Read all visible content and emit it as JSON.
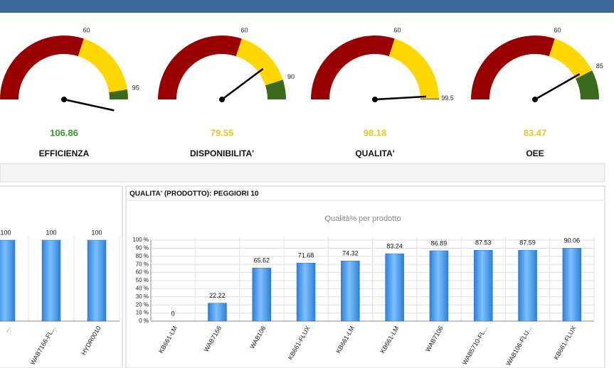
{
  "chart_data": [
    {
      "type": "gauge",
      "title": "EFFICIENZA",
      "value": 106.86,
      "value_color": "#3a9a2e",
      "ylim": [
        0,
        100
      ],
      "yticks": [
        60,
        95
      ],
      "band_colors": [
        "#990000",
        "#ffd700",
        "#3a6b1c"
      ]
    },
    {
      "type": "gauge",
      "title": "DISPONIBILITA'",
      "value": 79.55,
      "value_color": "#e8c820",
      "ylim": [
        0,
        100
      ],
      "yticks": [
        60,
        90
      ],
      "band_colors": [
        "#990000",
        "#ffd700",
        "#3a6b1c"
      ]
    },
    {
      "type": "gauge",
      "title": "QUALITA'",
      "value": 98.18,
      "value_color": "#e8c820",
      "ylim": [
        0,
        100
      ],
      "yticks": [
        60,
        99.5
      ],
      "band_colors": [
        "#990000",
        "#ffd700",
        "#3a6b1c"
      ]
    },
    {
      "type": "gauge",
      "title": "OEE",
      "value": 83.47,
      "value_color": "#e8c820",
      "ylim": [
        0,
        100
      ],
      "yticks": [
        60,
        85
      ],
      "band_colors": [
        "#990000",
        "#ffd700",
        "#3a6b1c"
      ]
    },
    {
      "type": "bar",
      "categories": [
        "...",
        "WAB7166-FL...",
        "HYDR0010"
      ],
      "values": [
        100,
        100,
        100
      ],
      "color": "#4a9ff0",
      "ylim": [
        0,
        100
      ]
    },
    {
      "type": "bar",
      "panel_title": "QUALITA' (PRODOTTO): PEGGIORI 10",
      "title": "Qualità% per prodotto",
      "categories": [
        "KB661-LM",
        "WAB7166",
        "WAB106",
        "KB661-FLUX",
        "KB661-LM",
        "KB661-LM",
        "WAB7106",
        "WAB5710-FL...",
        "WAB106-FLU...",
        "KB661-FLUX"
      ],
      "values": [
        0,
        22.22,
        65.62,
        71.68,
        74.32,
        83.24,
        86.89,
        87.53,
        87.59,
        90.06
      ],
      "color": "#4a9ff0",
      "ylim": [
        0,
        100
      ],
      "yticks": [
        {
          "value": 0,
          "label": "0 %"
        },
        {
          "value": 10,
          "label": "10 %"
        },
        {
          "value": 20,
          "label": "20 %"
        },
        {
          "value": 30,
          "label": "30 %"
        },
        {
          "value": 40,
          "label": "40 %"
        },
        {
          "value": 50,
          "label": "50 %"
        },
        {
          "value": 60,
          "label": "60 %"
        },
        {
          "value": 70,
          "label": "70 %"
        },
        {
          "value": 80,
          "label": "80 %"
        },
        {
          "value": 90,
          "label": "90 %"
        },
        {
          "value": 100,
          "label": "100 %"
        }
      ],
      "grid": true
    }
  ]
}
